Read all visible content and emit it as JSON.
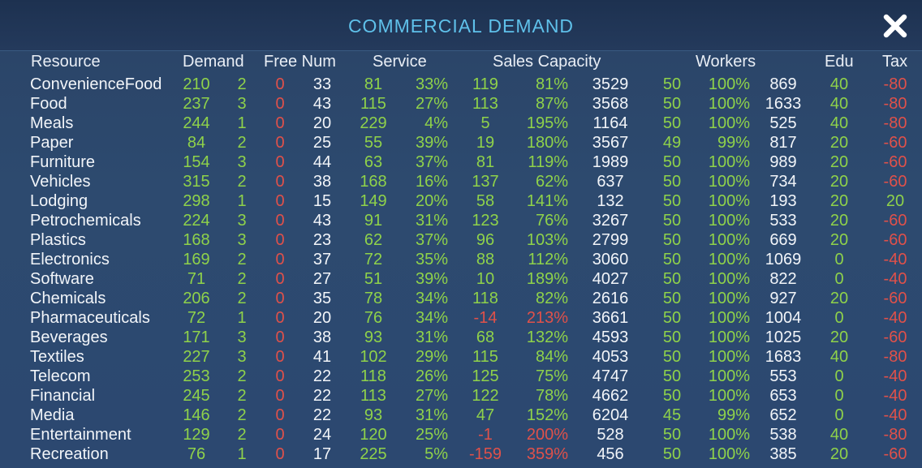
{
  "window": {
    "title": "COMMERCIAL DEMAND",
    "close_icon": "close-x-icon"
  },
  "colors": {
    "title": "#5fc1ea",
    "positive": "#8fd24a",
    "negative": "#e0514a",
    "text": "#f2f5f9"
  },
  "headers": {
    "resource": "Resource",
    "demand": "Demand",
    "free_num": "Free Num",
    "service": "Service",
    "sales_capacity": "Sales Capacity",
    "workers": "Workers",
    "edu": "Edu",
    "tax": "Tax"
  },
  "rows": [
    {
      "name": "ConvenienceFood",
      "demand": "210",
      "level": "2",
      "free": "0",
      "num": "33",
      "service": "81",
      "service_pct": "33%",
      "sales": "119",
      "sales_pct": "81%",
      "capacity": "3529",
      "workers": "50",
      "workers_pct": "100%",
      "workers_total": "869",
      "edu": "40",
      "tax": "-80"
    },
    {
      "name": "Food",
      "demand": "237",
      "level": "3",
      "free": "0",
      "num": "43",
      "service": "115",
      "service_pct": "27%",
      "sales": "113",
      "sales_pct": "87%",
      "capacity": "3568",
      "workers": "50",
      "workers_pct": "100%",
      "workers_total": "1633",
      "edu": "40",
      "tax": "-80"
    },
    {
      "name": "Meals",
      "demand": "244",
      "level": "1",
      "free": "0",
      "num": "20",
      "service": "229",
      "service_pct": "4%",
      "sales": "5",
      "sales_pct": "195%",
      "capacity": "1164",
      "workers": "50",
      "workers_pct": "100%",
      "workers_total": "525",
      "edu": "40",
      "tax": "-80"
    },
    {
      "name": "Paper",
      "demand": "84",
      "level": "2",
      "free": "0",
      "num": "25",
      "service": "55",
      "service_pct": "39%",
      "sales": "19",
      "sales_pct": "180%",
      "capacity": "3567",
      "workers": "49",
      "workers_pct": "99%",
      "workers_total": "817",
      "edu": "20",
      "tax": "-60"
    },
    {
      "name": "Furniture",
      "demand": "154",
      "level": "3",
      "free": "0",
      "num": "44",
      "service": "63",
      "service_pct": "37%",
      "sales": "81",
      "sales_pct": "119%",
      "capacity": "1989",
      "workers": "50",
      "workers_pct": "100%",
      "workers_total": "989",
      "edu": "20",
      "tax": "-60"
    },
    {
      "name": "Vehicles",
      "demand": "315",
      "level": "2",
      "free": "0",
      "num": "38",
      "service": "168",
      "service_pct": "16%",
      "sales": "137",
      "sales_pct": "62%",
      "capacity": "637",
      "workers": "50",
      "workers_pct": "100%",
      "workers_total": "734",
      "edu": "20",
      "tax": "-60"
    },
    {
      "name": "Lodging",
      "demand": "298",
      "level": "1",
      "free": "0",
      "num": "15",
      "service": "149",
      "service_pct": "20%",
      "sales": "58",
      "sales_pct": "141%",
      "capacity": "132",
      "workers": "50",
      "workers_pct": "100%",
      "workers_total": "193",
      "edu": "20",
      "tax": "20"
    },
    {
      "name": "Petrochemicals",
      "demand": "224",
      "level": "3",
      "free": "0",
      "num": "43",
      "service": "91",
      "service_pct": "31%",
      "sales": "123",
      "sales_pct": "76%",
      "capacity": "3267",
      "workers": "50",
      "workers_pct": "100%",
      "workers_total": "533",
      "edu": "20",
      "tax": "-60"
    },
    {
      "name": "Plastics",
      "demand": "168",
      "level": "3",
      "free": "0",
      "num": "23",
      "service": "62",
      "service_pct": "37%",
      "sales": "96",
      "sales_pct": "103%",
      "capacity": "2799",
      "workers": "50",
      "workers_pct": "100%",
      "workers_total": "669",
      "edu": "20",
      "tax": "-60"
    },
    {
      "name": "Electronics",
      "demand": "169",
      "level": "2",
      "free": "0",
      "num": "37",
      "service": "72",
      "service_pct": "35%",
      "sales": "88",
      "sales_pct": "112%",
      "capacity": "3060",
      "workers": "50",
      "workers_pct": "100%",
      "workers_total": "1069",
      "edu": "0",
      "tax": "-40"
    },
    {
      "name": "Software",
      "demand": "71",
      "level": "2",
      "free": "0",
      "num": "27",
      "service": "51",
      "service_pct": "39%",
      "sales": "10",
      "sales_pct": "189%",
      "capacity": "4027",
      "workers": "50",
      "workers_pct": "100%",
      "workers_total": "822",
      "edu": "0",
      "tax": "-40"
    },
    {
      "name": "Chemicals",
      "demand": "206",
      "level": "2",
      "free": "0",
      "num": "35",
      "service": "78",
      "service_pct": "34%",
      "sales": "118",
      "sales_pct": "82%",
      "capacity": "2616",
      "workers": "50",
      "workers_pct": "100%",
      "workers_total": "927",
      "edu": "20",
      "tax": "-60"
    },
    {
      "name": "Pharmaceuticals",
      "demand": "72",
      "level": "1",
      "free": "0",
      "num": "20",
      "service": "76",
      "service_pct": "34%",
      "sales": "-14",
      "sales_pct": "213%",
      "capacity": "3661",
      "workers": "50",
      "workers_pct": "100%",
      "workers_total": "1004",
      "edu": "0",
      "tax": "-40"
    },
    {
      "name": "Beverages",
      "demand": "171",
      "level": "3",
      "free": "0",
      "num": "38",
      "service": "93",
      "service_pct": "31%",
      "sales": "68",
      "sales_pct": "132%",
      "capacity": "4593",
      "workers": "50",
      "workers_pct": "100%",
      "workers_total": "1025",
      "edu": "20",
      "tax": "-60"
    },
    {
      "name": "Textiles",
      "demand": "227",
      "level": "3",
      "free": "0",
      "num": "41",
      "service": "102",
      "service_pct": "29%",
      "sales": "115",
      "sales_pct": "84%",
      "capacity": "4053",
      "workers": "50",
      "workers_pct": "100%",
      "workers_total": "1683",
      "edu": "40",
      "tax": "-80"
    },
    {
      "name": "Telecom",
      "demand": "253",
      "level": "2",
      "free": "0",
      "num": "22",
      "service": "118",
      "service_pct": "26%",
      "sales": "125",
      "sales_pct": "75%",
      "capacity": "4747",
      "workers": "50",
      "workers_pct": "100%",
      "workers_total": "553",
      "edu": "0",
      "tax": "-40"
    },
    {
      "name": "Financial",
      "demand": "245",
      "level": "2",
      "free": "0",
      "num": "22",
      "service": "113",
      "service_pct": "27%",
      "sales": "122",
      "sales_pct": "78%",
      "capacity": "4662",
      "workers": "50",
      "workers_pct": "100%",
      "workers_total": "653",
      "edu": "0",
      "tax": "-40"
    },
    {
      "name": "Media",
      "demand": "146",
      "level": "2",
      "free": "0",
      "num": "22",
      "service": "93",
      "service_pct": "31%",
      "sales": "47",
      "sales_pct": "152%",
      "capacity": "6204",
      "workers": "45",
      "workers_pct": "99%",
      "workers_total": "652",
      "edu": "0",
      "tax": "-40"
    },
    {
      "name": "Entertainment",
      "demand": "129",
      "level": "2",
      "free": "0",
      "num": "24",
      "service": "120",
      "service_pct": "25%",
      "sales": "-1",
      "sales_pct": "200%",
      "capacity": "528",
      "workers": "50",
      "workers_pct": "100%",
      "workers_total": "538",
      "edu": "40",
      "tax": "-80"
    },
    {
      "name": "Recreation",
      "demand": "76",
      "level": "1",
      "free": "0",
      "num": "17",
      "service": "225",
      "service_pct": "5%",
      "sales": "-159",
      "sales_pct": "359%",
      "capacity": "456",
      "workers": "50",
      "workers_pct": "100%",
      "workers_total": "385",
      "edu": "20",
      "tax": "-60"
    }
  ]
}
